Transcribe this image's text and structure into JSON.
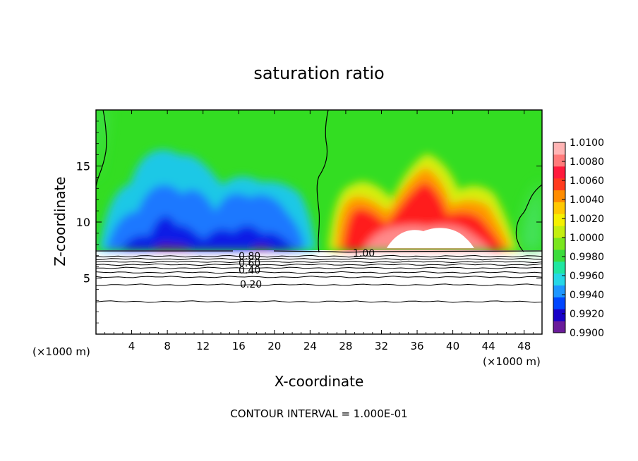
{
  "chart_data": {
    "type": "heatmap",
    "title": "saturation ratio",
    "xlabel": "X-coordinate",
    "ylabel": "Z-coordinate",
    "x_unit_left": "(×1000 m)",
    "x_unit_right": "(×1000 m)",
    "footer": "CONTOUR INTERVAL = 1.000E-01",
    "xlim": [
      0,
      50
    ],
    "ylim": [
      0,
      20
    ],
    "x_ticks": [
      4,
      8,
      12,
      16,
      20,
      24,
      28,
      32,
      36,
      40,
      44,
      48
    ],
    "y_ticks": [
      5,
      10,
      15
    ],
    "colorbar": {
      "min": 0.99,
      "max": 1.01,
      "labels": [
        "1.0100",
        "1.0080",
        "1.0060",
        "1.0040",
        "1.0020",
        "1.0000",
        "0.9980",
        "0.9960",
        "0.9940",
        "0.9920",
        "0.9900"
      ],
      "colors": [
        "#6a1b9a",
        "#1800c8",
        "#0046ff",
        "#1e96ff",
        "#26d7e6",
        "#20e6a0",
        "#3cdc3c",
        "#7ae61e",
        "#c4ee10",
        "#f5f000",
        "#ffc800",
        "#ff8c00",
        "#ff3a1e",
        "#ff1a3c",
        "#ff7a7a",
        "#ffb4b4"
      ]
    },
    "contour_labels": [
      {
        "x": 19.2,
        "z": 7.2,
        "text": "0.80"
      },
      {
        "x": 19.0,
        "z": 6.75,
        "text": "0.60"
      },
      {
        "x": 19.0,
        "z": 5.7,
        "text": "0.40"
      },
      {
        "x": 19.0,
        "z": 4.6,
        "text": "0.20"
      },
      {
        "x": 29.8,
        "z": 7.3,
        "text": "1.00"
      }
    ],
    "contour_levels_below": [
      6.95,
      6.7,
      6.45,
      6.2,
      5.9,
      5.5,
      5.1,
      4.4,
      2.9
    ]
  }
}
